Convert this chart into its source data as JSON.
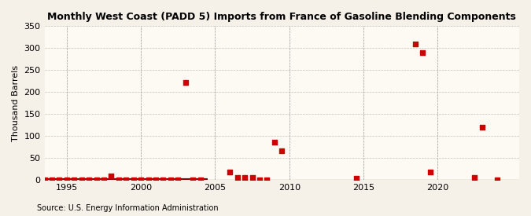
{
  "title": "Monthly West Coast (PADD 5) Imports from France of Gasoline Blending Components",
  "ylabel": "Thousand Barrels",
  "source": "Source: U.S. Energy Information Administration",
  "background_color": "#f5f0e8",
  "plot_bg_color": "#fdfaf4",
  "dot_color": "#cc0000",
  "line_color": "#8B0000",
  "xlim": [
    1993.5,
    2025.5
  ],
  "ylim": [
    0,
    350
  ],
  "yticks": [
    0,
    50,
    100,
    150,
    200,
    250,
    300,
    350
  ],
  "xticks": [
    1995,
    2000,
    2005,
    2010,
    2015,
    2020
  ],
  "data_x": [
    1993.5,
    1994.0,
    1994.5,
    1995.0,
    1995.5,
    1996.0,
    1996.5,
    1997.0,
    1997.5,
    1998.0,
    1998.5,
    1999.0,
    1999.5,
    2000.0,
    2000.5,
    2001.0,
    2001.5,
    2002.0,
    2002.5,
    2003.0,
    2003.5,
    2004.0,
    2006.0,
    2006.5,
    2007.0,
    2007.5,
    2008.0,
    2008.5,
    2009.0,
    2009.5,
    2014.5,
    2018.5,
    2019.0,
    2019.5,
    2022.5,
    2023.0,
    2024.0
  ],
  "data_y": [
    0,
    0,
    0,
    0,
    0,
    0,
    0,
    0,
    0,
    8,
    0,
    0,
    0,
    0,
    0,
    0,
    0,
    0,
    0,
    222,
    0,
    0,
    18,
    4,
    4,
    4,
    0,
    0,
    85,
    65,
    3,
    310,
    290,
    18,
    5,
    120,
    0
  ],
  "zero_line_x_start": 1993.5,
  "zero_line_x_end": 2004.5
}
